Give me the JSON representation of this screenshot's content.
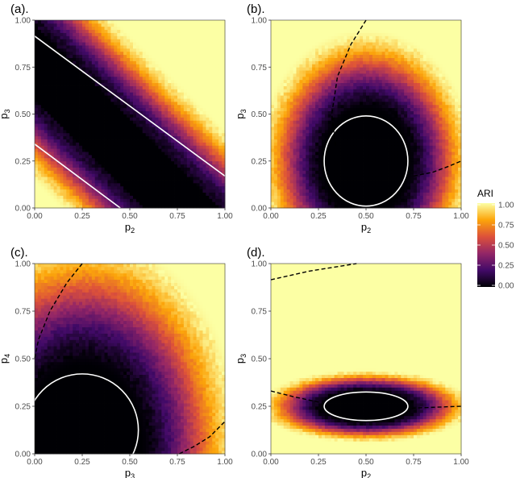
{
  "chart_data": [
    {
      "type": "heatmap",
      "panel": "(a).",
      "xlabel": "p",
      "xlabel_sub": "2",
      "ylabel": "p",
      "ylabel_sub": "3",
      "xlim": [
        0,
        1
      ],
      "ylim": [
        0,
        1
      ],
      "x_ticks": [
        "0.00",
        "0.25",
        "0.50",
        "0.75",
        "1.00"
      ],
      "y_ticks": [
        "0.00",
        "0.25",
        "0.50",
        "0.75",
        "1.00"
      ],
      "pattern": "band",
      "curves": [
        {
          "style": "solid",
          "points": [
            [
              0,
              0.915
            ],
            [
              1,
              0.17
            ]
          ]
        },
        {
          "style": "solid",
          "points": [
            [
              0,
              0.34
            ],
            [
              0.45,
              0
            ]
          ]
        }
      ]
    },
    {
      "type": "heatmap",
      "panel": "(b).",
      "xlabel": "p",
      "xlabel_sub": "2",
      "ylabel": "p",
      "ylabel_sub": "3",
      "xlim": [
        0,
        1
      ],
      "ylim": [
        0,
        1
      ],
      "x_ticks": [
        "0.00",
        "0.25",
        "0.50",
        "0.75",
        "1.00"
      ],
      "y_ticks": [
        "0.00",
        "0.25",
        "0.50",
        "0.75",
        "1.00"
      ],
      "pattern": "blob",
      "blob": {
        "cx": 0.5,
        "cy": 0.25,
        "rx": 0.22,
        "ry": 0.27,
        "spread": 0.36
      },
      "curves": [
        {
          "style": "ellipse",
          "cx": 0.5,
          "cy": 0.25,
          "rx": 0.22,
          "ry": 0.24
        },
        {
          "style": "dashed",
          "points": [
            [
              0.5,
              1.0
            ],
            [
              0.42,
              0.87
            ],
            [
              0.35,
              0.7
            ],
            [
              0.32,
              0.5
            ],
            [
              0.34,
              0.33
            ]
          ]
        },
        {
          "style": "dashed",
          "points": [
            [
              0.75,
              0.17
            ],
            [
              0.85,
              0.19
            ],
            [
              0.93,
              0.22
            ],
            [
              1.0,
              0.25
            ]
          ]
        }
      ]
    },
    {
      "type": "heatmap",
      "panel": "(c).",
      "xlabel": "p",
      "xlabel_sub": "3",
      "ylabel": "p",
      "ylabel_sub": "4",
      "xlim": [
        0,
        1
      ],
      "ylim": [
        0,
        1
      ],
      "x_ticks": [
        "0.00",
        "0.25",
        "0.50",
        "0.75",
        "1.00"
      ],
      "y_ticks": [
        "0.00",
        "0.25",
        "0.50",
        "0.75",
        "1.00"
      ],
      "pattern": "blob",
      "blob": {
        "cx": 0.25,
        "cy": 0.05,
        "rx": 0.3,
        "ry": 0.4,
        "spread": 0.55
      },
      "curves": [
        {
          "style": "ellipse",
          "cx": 0.25,
          "cy": 0.125,
          "rx": 0.295,
          "ry": 0.295
        },
        {
          "style": "dashed",
          "points": [
            [
              0.25,
              1.0
            ],
            [
              0.17,
              0.9
            ],
            [
              0.08,
              0.75
            ],
            [
              0.02,
              0.6
            ],
            [
              0.0,
              0.5
            ]
          ]
        },
        {
          "style": "dashed",
          "points": [
            [
              0.76,
              0.0
            ],
            [
              0.84,
              0.04
            ],
            [
              0.92,
              0.09
            ],
            [
              1.0,
              0.17
            ]
          ]
        }
      ]
    },
    {
      "type": "heatmap",
      "panel": "(d).",
      "xlabel": "p",
      "xlabel_sub": "2",
      "ylabel": "p",
      "ylabel_sub": "3",
      "xlim": [
        0,
        1
      ],
      "ylim": [
        0,
        1
      ],
      "x_ticks": [
        "0.00",
        "0.25",
        "0.50",
        "0.75",
        "1.00"
      ],
      "y_ticks": [
        "0.00",
        "0.25",
        "0.50",
        "0.75",
        "1.00"
      ],
      "pattern": "blob",
      "blob": {
        "cx": 0.5,
        "cy": 0.25,
        "rx": 0.22,
        "ry": 0.075,
        "spread": 0.12
      },
      "curves": [
        {
          "style": "ellipse",
          "cx": 0.5,
          "cy": 0.25,
          "rx": 0.22,
          "ry": 0.075
        },
        {
          "style": "dashed",
          "points": [
            [
              0.0,
              0.33
            ],
            [
              0.12,
              0.3
            ],
            [
              0.26,
              0.27
            ]
          ]
        },
        {
          "style": "dashed",
          "points": [
            [
              0.74,
              0.24
            ],
            [
              0.86,
              0.245
            ],
            [
              1.0,
              0.25
            ]
          ]
        },
        {
          "style": "dashed",
          "points": [
            [
              0.0,
              0.915
            ],
            [
              0.2,
              0.96
            ],
            [
              0.45,
              1.0
            ]
          ]
        }
      ]
    }
  ],
  "legend": {
    "title": "ARI",
    "ticks": [
      "1.00",
      "0.75",
      "0.50",
      "0.25",
      "0.00"
    ],
    "colors": [
      "#000004",
      "#420a68",
      "#932667",
      "#dd513a",
      "#fca50a",
      "#fcffa4"
    ]
  }
}
